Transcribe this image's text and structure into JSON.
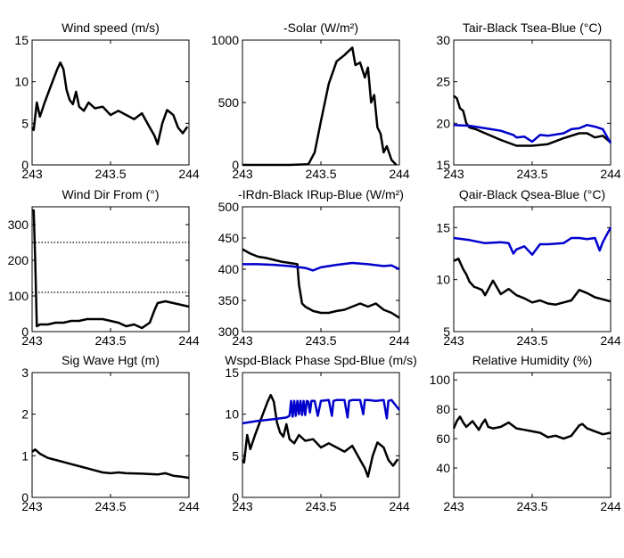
{
  "chart_data": [
    {
      "type": "line",
      "title": "Wind speed (m/s)",
      "xlim": [
        243,
        244
      ],
      "ylim": [
        0,
        15
      ],
      "xticks": [
        243,
        243.5,
        244
      ],
      "xticklabels": [
        "243",
        "243.5",
        "244"
      ],
      "yticks": [
        0,
        5,
        10,
        15
      ],
      "yticklabels": [
        "0",
        "5",
        "10",
        "15"
      ],
      "series": [
        {
          "color": "#000000",
          "x": [
            243.0,
            243.01,
            243.03,
            243.05,
            243.08,
            243.12,
            243.16,
            243.18,
            243.2,
            243.22,
            243.24,
            243.26,
            243.28,
            243.3,
            243.33,
            243.36,
            243.4,
            243.45,
            243.5,
            243.55,
            243.6,
            243.65,
            243.7,
            243.75,
            243.78,
            243.8,
            243.83,
            243.86,
            243.9,
            243.93,
            243.96,
            243.99
          ],
          "y": [
            4.5,
            4.2,
            7.5,
            5.8,
            7.5,
            9.5,
            11.5,
            12.3,
            11.5,
            9.0,
            7.8,
            7.3,
            8.8,
            7.0,
            6.5,
            7.5,
            6.8,
            7.0,
            6.0,
            6.5,
            6.0,
            5.5,
            6.2,
            4.5,
            3.5,
            2.5,
            5.0,
            6.6,
            6.0,
            4.5,
            3.8,
            4.6
          ]
        }
      ]
    },
    {
      "type": "line",
      "title": "-Solar (W/m²)",
      "xlim": [
        243,
        244
      ],
      "ylim": [
        0,
        1000
      ],
      "xticks": [
        243,
        243.5,
        244
      ],
      "xticklabels": [
        "243",
        "243.5",
        "244"
      ],
      "yticks": [
        0,
        500,
        1000
      ],
      "yticklabels": [
        "0",
        "500",
        "1000"
      ],
      "series": [
        {
          "color": "#000000",
          "x": [
            243.0,
            243.3,
            243.42,
            243.46,
            243.5,
            243.55,
            243.6,
            243.65,
            243.7,
            243.72,
            243.75,
            243.78,
            243.8,
            243.82,
            243.84,
            243.86,
            243.88,
            243.9,
            243.92,
            243.95,
            243.98
          ],
          "y": [
            0,
            0,
            5,
            100,
            350,
            650,
            830,
            880,
            940,
            800,
            820,
            700,
            780,
            500,
            560,
            300,
            250,
            100,
            150,
            40,
            0
          ]
        }
      ]
    },
    {
      "type": "line",
      "title": "Tair-Black Tsea-Blue (°C)",
      "xlim": [
        243,
        244
      ],
      "ylim": [
        15,
        30
      ],
      "xticks": [
        243,
        243.5,
        244
      ],
      "xticklabels": [
        "243",
        "243.5",
        "244"
      ],
      "yticks": [
        15,
        20,
        25,
        30
      ],
      "yticklabels": [
        "15",
        "20",
        "25",
        "30"
      ],
      "series": [
        {
          "name": "Tair",
          "color": "#000000",
          "x": [
            243.0,
            243.02,
            243.04,
            243.06,
            243.08,
            243.1,
            243.14,
            243.2,
            243.3,
            243.4,
            243.5,
            243.6,
            243.7,
            243.8,
            243.85,
            243.9,
            243.95,
            244.0
          ],
          "y": [
            23.3,
            23.0,
            21.8,
            21.5,
            20.0,
            19.5,
            19.3,
            18.8,
            18.0,
            17.3,
            17.3,
            17.5,
            18.2,
            18.8,
            18.8,
            18.3,
            18.5,
            17.7
          ]
        },
        {
          "name": "Tsea",
          "color": "#0000cc",
          "x": [
            243.0,
            243.1,
            243.2,
            243.3,
            243.38,
            243.4,
            243.45,
            243.5,
            243.55,
            243.6,
            243.7,
            243.75,
            243.8,
            243.85,
            243.9,
            243.95,
            244.0
          ],
          "y": [
            19.8,
            19.7,
            19.4,
            19.1,
            18.6,
            18.3,
            18.4,
            17.8,
            18.6,
            18.5,
            18.8,
            19.3,
            19.4,
            19.8,
            19.6,
            19.3,
            17.6
          ]
        }
      ]
    },
    {
      "type": "line",
      "title": "Wind Dir From (°)",
      "xlim": [
        243,
        244
      ],
      "ylim": [
        0,
        350
      ],
      "xticks": [
        243,
        243.5,
        244
      ],
      "xticklabels": [
        "243",
        "243.5",
        "244"
      ],
      "yticks": [
        0,
        100,
        200,
        300
      ],
      "yticklabels": [
        "0",
        "100",
        "200",
        "300"
      ],
      "hlines": [
        110,
        250
      ],
      "series": [
        {
          "color": "#000000",
          "x": [
            243.0,
            243.01,
            243.02,
            243.03,
            243.05,
            243.1,
            243.15,
            243.2,
            243.25,
            243.3,
            243.35,
            243.4,
            243.45,
            243.5,
            243.55,
            243.6,
            243.65,
            243.7,
            243.75,
            243.78,
            243.8,
            243.85,
            243.9,
            243.95,
            244.0
          ],
          "y": [
            340,
            340,
            200,
            15,
            20,
            20,
            25,
            25,
            30,
            30,
            35,
            35,
            35,
            30,
            25,
            15,
            20,
            10,
            25,
            60,
            80,
            85,
            80,
            75,
            70
          ]
        }
      ]
    },
    {
      "type": "line",
      "title": "-IRdn-Black IRup-Blue (W/m²)",
      "xlim": [
        243,
        244
      ],
      "ylim": [
        300,
        500
      ],
      "xticks": [
        243,
        243.5,
        244
      ],
      "xticklabels": [
        "243",
        "243.5",
        "244"
      ],
      "yticks": [
        300,
        350,
        400,
        450,
        500
      ],
      "yticklabels": [
        "300",
        "350",
        "400",
        "450",
        "500"
      ],
      "series": [
        {
          "name": "IRdn",
          "color": "#000000",
          "x": [
            243.0,
            243.05,
            243.1,
            243.15,
            243.2,
            243.25,
            243.3,
            243.35,
            243.36,
            243.38,
            243.4,
            243.45,
            243.5,
            243.55,
            243.6,
            243.65,
            243.7,
            243.75,
            243.8,
            243.85,
            243.9,
            243.95,
            244.0
          ],
          "y": [
            432,
            425,
            420,
            418,
            415,
            412,
            410,
            408,
            375,
            345,
            340,
            333,
            330,
            330,
            333,
            335,
            340,
            345,
            340,
            345,
            335,
            330,
            322
          ]
        },
        {
          "name": "IRup",
          "color": "#0000cc",
          "x": [
            243.0,
            243.1,
            243.2,
            243.3,
            243.4,
            243.45,
            243.5,
            243.6,
            243.7,
            243.8,
            243.9,
            243.95,
            244.0
          ],
          "y": [
            408,
            408,
            407,
            405,
            402,
            398,
            403,
            407,
            410,
            408,
            405,
            406,
            400
          ]
        }
      ]
    },
    {
      "type": "line",
      "title": "Qair-Black Qsea-Blue (°C)",
      "xlim": [
        243,
        244
      ],
      "ylim": [
        5,
        17
      ],
      "xticks": [
        243,
        243.5,
        244
      ],
      "xticklabels": [
        "243",
        "243.5",
        "244"
      ],
      "yticks": [
        5,
        10,
        15
      ],
      "yticklabels": [
        "5",
        "10",
        "15"
      ],
      "series": [
        {
          "name": "Qair",
          "color": "#000000",
          "x": [
            243.0,
            243.03,
            243.06,
            243.08,
            243.1,
            243.13,
            243.15,
            243.18,
            243.2,
            243.25,
            243.3,
            243.35,
            243.4,
            243.45,
            243.5,
            243.55,
            243.6,
            243.65,
            243.7,
            243.75,
            243.8,
            243.85,
            243.9,
            243.95,
            244.0
          ],
          "y": [
            11.8,
            12.0,
            11.0,
            10.5,
            9.8,
            9.3,
            9.2,
            9.0,
            8.5,
            9.9,
            8.6,
            9.1,
            8.5,
            8.2,
            7.8,
            8.0,
            7.7,
            7.6,
            7.8,
            8.0,
            9.0,
            8.7,
            8.3,
            8.1,
            7.9
          ]
        },
        {
          "name": "Qsea",
          "color": "#0000cc",
          "x": [
            243.0,
            243.1,
            243.2,
            243.3,
            243.35,
            243.38,
            243.4,
            243.45,
            243.5,
            243.55,
            243.6,
            243.7,
            243.75,
            243.8,
            243.85,
            243.9,
            243.93,
            243.95,
            244.0
          ],
          "y": [
            14.0,
            13.8,
            13.5,
            13.6,
            13.5,
            12.5,
            12.9,
            13.2,
            12.4,
            13.4,
            13.4,
            13.5,
            14.0,
            14.0,
            13.9,
            14.0,
            12.8,
            13.6,
            15.0
          ]
        }
      ]
    },
    {
      "type": "line",
      "title": "Sig Wave Hgt (m)",
      "xlim": [
        243,
        244
      ],
      "ylim": [
        0,
        3
      ],
      "xticks": [
        243,
        243.5,
        244
      ],
      "xticklabels": [
        "243",
        "243.5",
        "244"
      ],
      "yticks": [
        0,
        1,
        2,
        3
      ],
      "yticklabels": [
        "0",
        "1",
        "2",
        "3"
      ],
      "series": [
        {
          "color": "#000000",
          "x": [
            243.0,
            243.02,
            243.05,
            243.1,
            243.15,
            243.2,
            243.25,
            243.3,
            243.35,
            243.4,
            243.45,
            243.5,
            243.55,
            243.6,
            243.7,
            243.8,
            243.85,
            243.9,
            243.95,
            244.0
          ],
          "y": [
            1.1,
            1.15,
            1.05,
            0.95,
            0.9,
            0.85,
            0.8,
            0.75,
            0.7,
            0.65,
            0.6,
            0.58,
            0.6,
            0.58,
            0.57,
            0.55,
            0.58,
            0.52,
            0.5,
            0.47
          ]
        }
      ]
    },
    {
      "type": "line",
      "title": "Wspd-Black Phase Spd-Blue (m/s)",
      "xlim": [
        243,
        244
      ],
      "ylim": [
        0,
        15
      ],
      "xticks": [
        243,
        243.5,
        244
      ],
      "xticklabels": [
        "243",
        "243.5",
        "244"
      ],
      "yticks": [
        0,
        5,
        10,
        15
      ],
      "yticklabels": [
        "0",
        "5",
        "10",
        "15"
      ],
      "series": [
        {
          "name": "Wspd",
          "color": "#000000",
          "x": [
            243.0,
            243.01,
            243.03,
            243.05,
            243.08,
            243.12,
            243.16,
            243.18,
            243.2,
            243.22,
            243.24,
            243.26,
            243.28,
            243.3,
            243.33,
            243.36,
            243.4,
            243.45,
            243.5,
            243.55,
            243.6,
            243.65,
            243.7,
            243.75,
            243.78,
            243.8,
            243.83,
            243.86,
            243.9,
            243.93,
            243.96,
            243.99
          ],
          "y": [
            4.5,
            4.2,
            7.5,
            5.8,
            7.5,
            9.5,
            11.5,
            12.3,
            11.5,
            9.0,
            7.8,
            7.3,
            8.8,
            7.0,
            6.5,
            7.5,
            6.8,
            7.0,
            6.0,
            6.5,
            6.0,
            5.5,
            6.2,
            4.5,
            3.5,
            2.5,
            5.0,
            6.6,
            6.0,
            4.5,
            3.8,
            4.6
          ]
        },
        {
          "name": "Phase Spd",
          "color": "#0000cc",
          "x": [
            243.0,
            243.1,
            243.2,
            243.28,
            243.3,
            243.31,
            243.32,
            243.33,
            243.34,
            243.35,
            243.36,
            243.37,
            243.38,
            243.39,
            243.4,
            243.41,
            243.42,
            243.43,
            243.44,
            243.46,
            243.48,
            243.5,
            243.55,
            243.57,
            243.58,
            243.6,
            243.65,
            243.67,
            243.68,
            243.7,
            243.75,
            243.77,
            243.78,
            243.8,
            243.85,
            243.9,
            243.92,
            243.93,
            243.95,
            244.0
          ],
          "y": [
            8.9,
            9.2,
            9.4,
            9.6,
            9.8,
            11.6,
            9.7,
            11.6,
            9.8,
            11.6,
            10.0,
            11.6,
            9.9,
            11.6,
            9.9,
            11.6,
            11.5,
            10.2,
            11.6,
            11.6,
            9.8,
            11.6,
            11.7,
            9.8,
            11.6,
            11.7,
            11.7,
            9.6,
            11.6,
            11.7,
            11.7,
            10.0,
            11.7,
            11.7,
            11.6,
            11.7,
            9.5,
            11.6,
            11.7,
            10.5
          ]
        }
      ]
    },
    {
      "type": "line",
      "title": "Relative Humidity (%)",
      "xlim": [
        243,
        244
      ],
      "ylim": [
        20,
        105
      ],
      "xticks": [
        243,
        243.5,
        244
      ],
      "xticklabels": [
        "243",
        "243.5",
        "244"
      ],
      "yticks": [
        40,
        60,
        80,
        100
      ],
      "yticklabels": [
        "40",
        "60",
        "80",
        "100"
      ],
      "series": [
        {
          "color": "#000000",
          "x": [
            243.0,
            243.02,
            243.04,
            243.06,
            243.08,
            243.1,
            243.12,
            243.14,
            243.16,
            243.18,
            243.2,
            243.22,
            243.25,
            243.3,
            243.35,
            243.4,
            243.45,
            243.5,
            243.55,
            243.6,
            243.65,
            243.7,
            243.75,
            243.8,
            243.82,
            243.85,
            243.9,
            243.95,
            244.0
          ],
          "y": [
            67,
            72,
            75,
            71,
            68,
            70,
            72,
            69,
            66,
            70,
            73,
            68,
            67,
            68,
            71,
            67,
            66,
            65,
            64,
            61,
            62,
            60,
            62,
            69,
            70,
            67,
            65,
            63,
            64
          ]
        }
      ]
    }
  ]
}
